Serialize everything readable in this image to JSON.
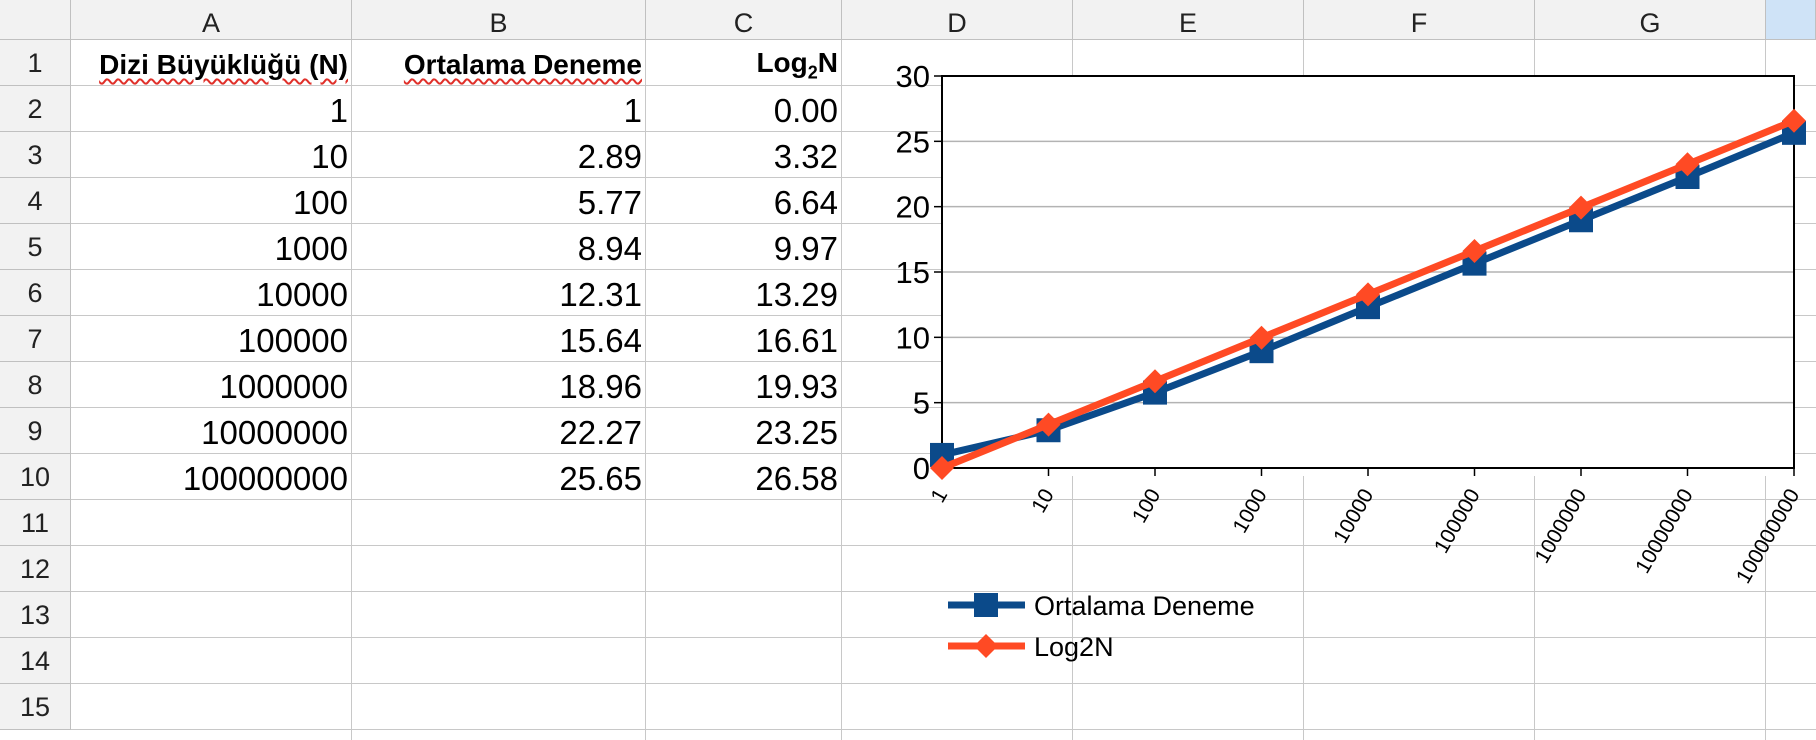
{
  "columns": [
    "A",
    "B",
    "C",
    "D",
    "E",
    "F",
    "G"
  ],
  "rows": [
    "1",
    "2",
    "3",
    "4",
    "5",
    "6",
    "7",
    "8",
    "9",
    "10",
    "11",
    "12",
    "13",
    "14",
    "15"
  ],
  "table": {
    "headers": {
      "a": "Dizi Büyüklüğü (N)",
      "b": "Ortalama Deneme",
      "c_main": "Log",
      "c_sub": "2",
      "c_end": "N"
    },
    "data": [
      [
        "1",
        "1",
        "0.00"
      ],
      [
        "10",
        "2.89",
        "3.32"
      ],
      [
        "100",
        "5.77",
        "6.64"
      ],
      [
        "1000",
        "8.94",
        "9.97"
      ],
      [
        "10000",
        "12.31",
        "13.29"
      ],
      [
        "100000",
        "15.64",
        "16.61"
      ],
      [
        "1000000",
        "18.96",
        "19.93"
      ],
      [
        "10000000",
        "22.27",
        "23.25"
      ],
      [
        "100000000",
        "25.65",
        "26.58"
      ]
    ]
  },
  "chart_data": {
    "type": "line",
    "categories": [
      "1",
      "10",
      "100",
      "1000",
      "10000",
      "100000",
      "1000000",
      "10000000",
      "100000000"
    ],
    "series": [
      {
        "name": "Ortalama Deneme",
        "values": [
          1,
          2.89,
          5.77,
          8.94,
          12.31,
          15.64,
          18.96,
          22.27,
          25.65
        ],
        "color": "#0b4a8a",
        "marker": "square"
      },
      {
        "name": "Log2N",
        "values": [
          0,
          3.32,
          6.64,
          9.97,
          13.29,
          16.61,
          19.93,
          23.25,
          26.58
        ],
        "color": "#ff4a24",
        "marker": "diamond"
      }
    ],
    "ylim": [
      0,
      30
    ],
    "yticks": [
      "0",
      "5",
      "10",
      "15",
      "20",
      "25",
      "30"
    ],
    "grid": true,
    "legend": "bottom-left"
  },
  "colors": {
    "header_bg": "#f2f2f2",
    "grid": "#c8c8c8",
    "spell_underline": "#e0302a"
  }
}
